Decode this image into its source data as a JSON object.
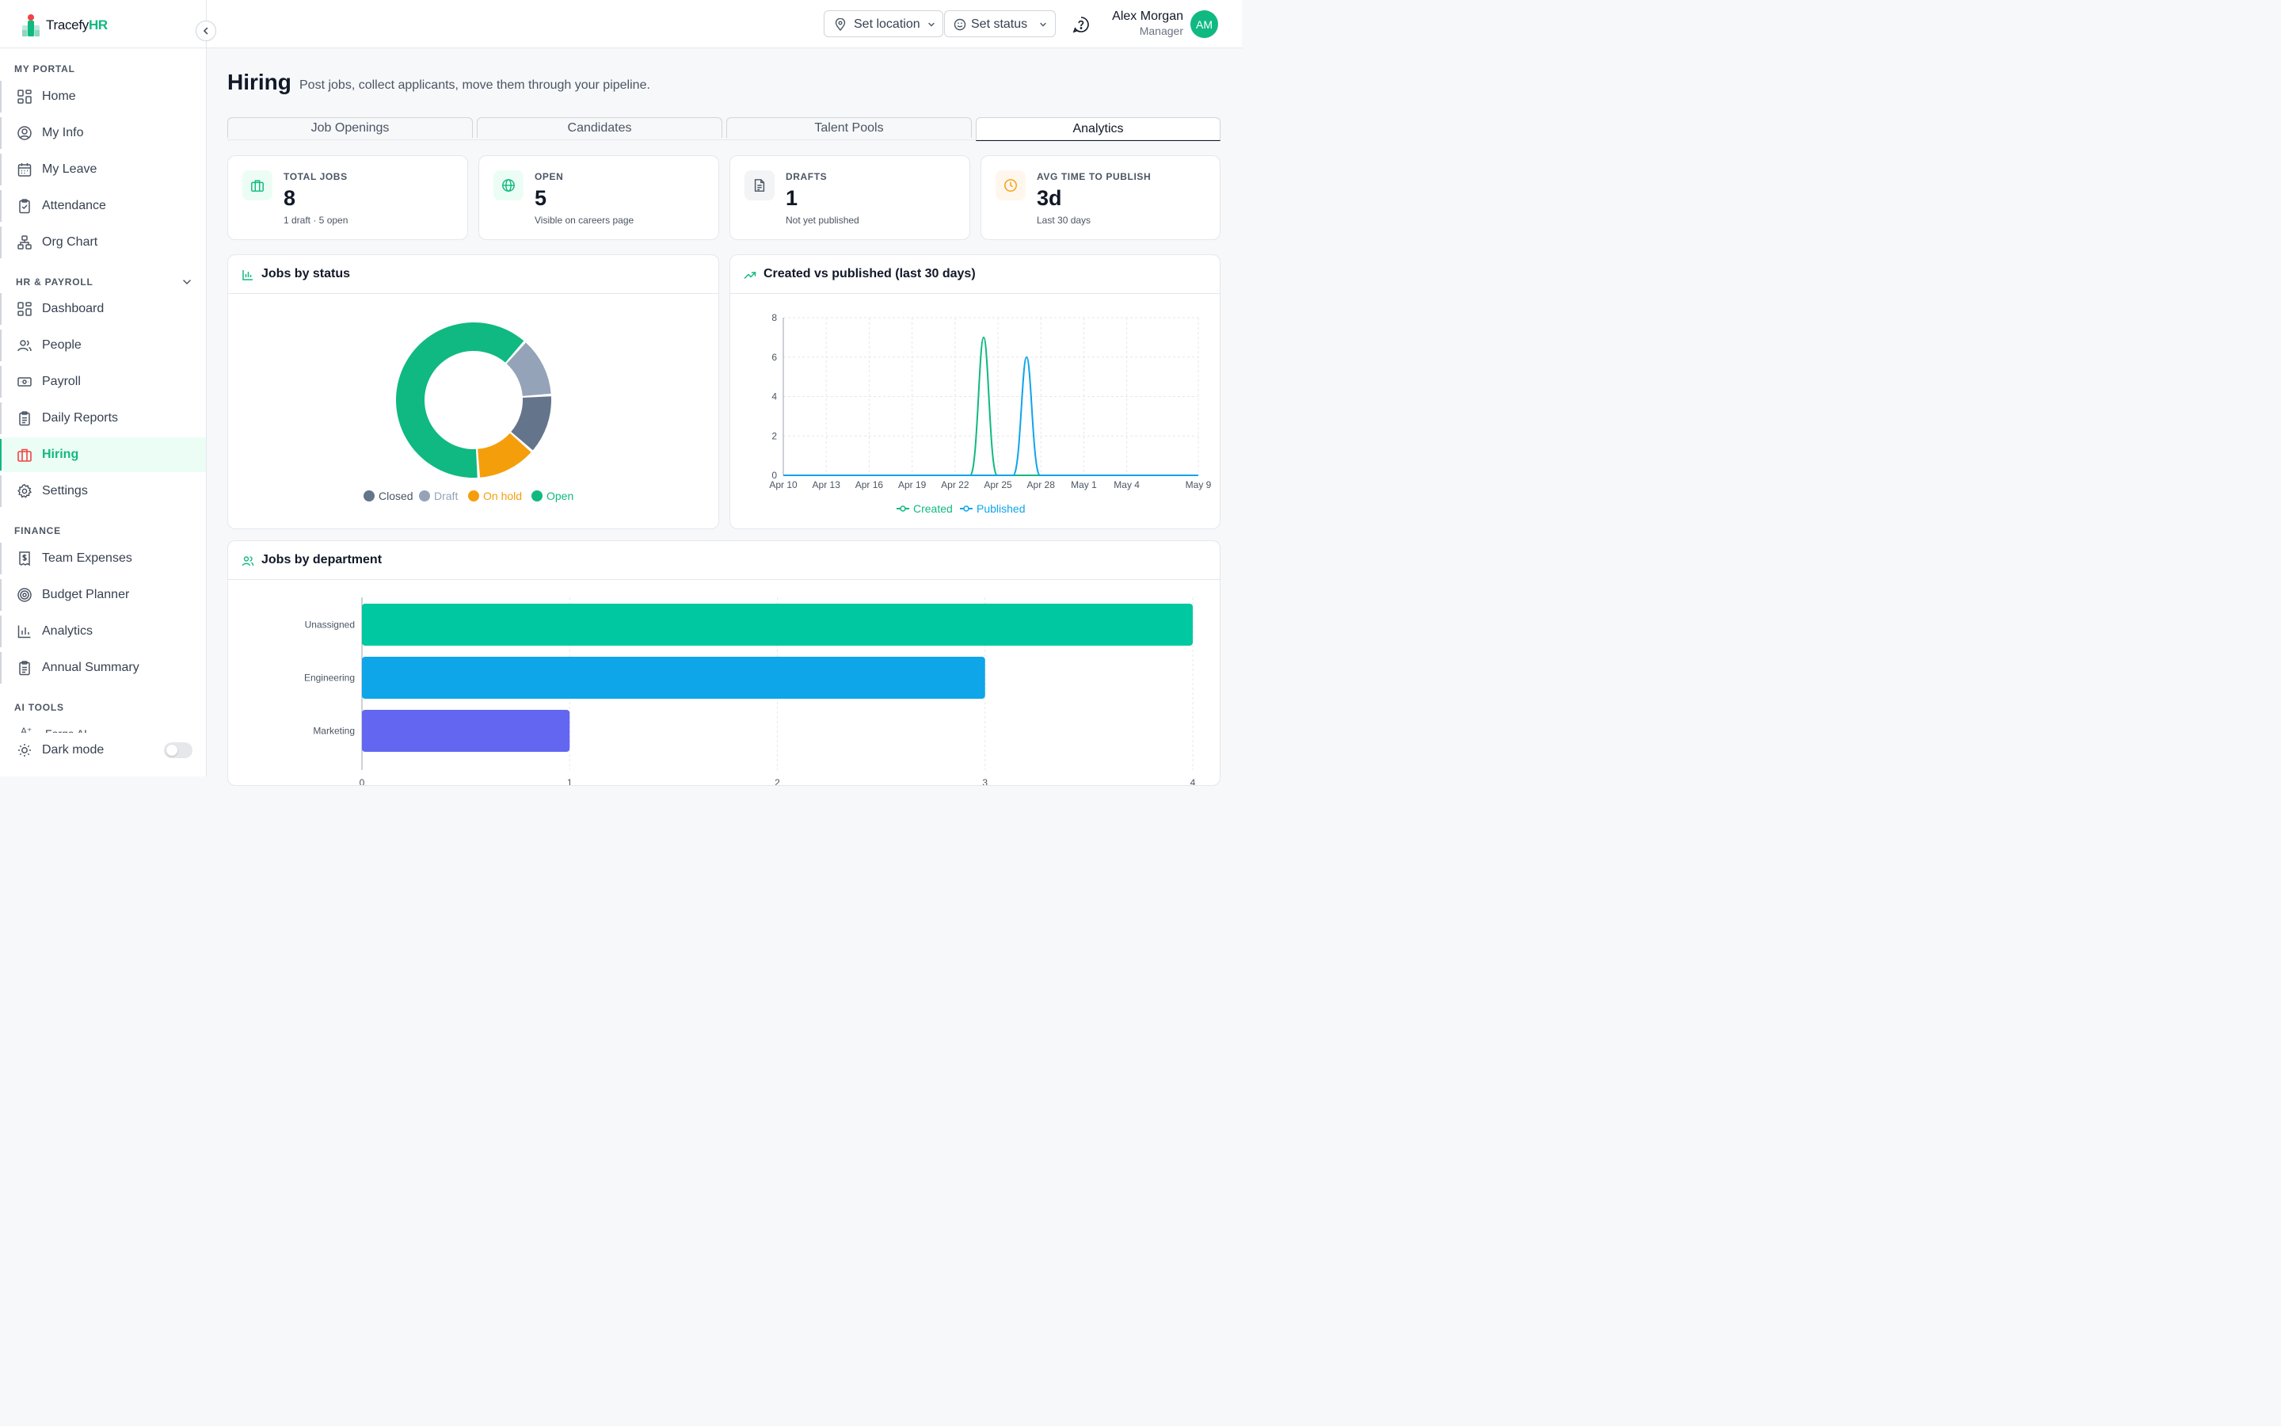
{
  "brand": {
    "name_prefix": "Tracefy",
    "name_suffix": "HR"
  },
  "sidebar": {
    "sections": [
      {
        "title": "MY PORTAL"
      },
      {
        "title": "HR & PAYROLL"
      },
      {
        "title": "FINANCE"
      },
      {
        "title": "AI TOOLS"
      }
    ],
    "items": [
      {
        "label": "Home",
        "icon": "grid-icon"
      },
      {
        "label": "My Info",
        "icon": "user-circle-icon"
      },
      {
        "label": "My Leave",
        "icon": "calendar-icon"
      },
      {
        "label": "Attendance",
        "icon": "clipboard-check-icon"
      },
      {
        "label": "Org Chart",
        "icon": "org-chart-icon"
      },
      {
        "label": "Dashboard",
        "icon": "grid-icon"
      },
      {
        "label": "People",
        "icon": "users-icon"
      },
      {
        "label": "Payroll",
        "icon": "banknote-icon"
      },
      {
        "label": "Daily Reports",
        "icon": "clipboard-icon"
      },
      {
        "label": "Hiring",
        "icon": "briefcase-icon"
      },
      {
        "label": "Settings",
        "icon": "gear-icon"
      },
      {
        "label": "Team Expenses",
        "icon": "receipt-icon"
      },
      {
        "label": "Budget Planner",
        "icon": "target-icon"
      },
      {
        "label": "Analytics",
        "icon": "bar-chart-icon"
      },
      {
        "label": "Annual Summary",
        "icon": "clipboard-icon"
      }
    ],
    "partial_item": "Forge AI",
    "dark_mode_label": "Dark mode"
  },
  "topbar": {
    "location_label": "Set location",
    "status_label": "Set status",
    "user_name": "Alex Morgan",
    "user_role": "Manager",
    "avatar_initials": "AM"
  },
  "page": {
    "title": "Hiring",
    "subtitle": "Post jobs, collect applicants, move them through your pipeline.",
    "tabs": [
      {
        "label": "Job Openings"
      },
      {
        "label": "Candidates"
      },
      {
        "label": "Talent Pools"
      },
      {
        "label": "Analytics"
      }
    ],
    "active_tab": "Analytics"
  },
  "stats": [
    {
      "label": "TOTAL JOBS",
      "value": "8",
      "sub": "1 draft · 5 open",
      "icon": "briefcase-icon",
      "color": "#10b981",
      "bg": "#ecfdf5"
    },
    {
      "label": "OPEN",
      "value": "5",
      "sub": "Visible on careers page",
      "icon": "globe-icon",
      "color": "#10b981",
      "bg": "#ecfdf5"
    },
    {
      "label": "DRAFTS",
      "value": "1",
      "sub": "Not yet published",
      "icon": "document-icon",
      "color": "#4b5563",
      "bg": "#f3f4f6"
    },
    {
      "label": "AVG TIME TO PUBLISH",
      "value": "3d",
      "sub": "Last 30 days",
      "icon": "clock-icon",
      "color": "#f59e0b",
      "bg": "#fff7ed"
    }
  ],
  "cards": {
    "status_title": "Jobs by status",
    "trend_title": "Created vs published (last 30 days)",
    "dept_title": "Jobs by department"
  },
  "chart_data": [
    {
      "type": "pie",
      "title": "Jobs by status",
      "categories": [
        "Closed",
        "Draft",
        "On hold",
        "Open"
      ],
      "values": [
        1,
        1,
        1,
        5
      ],
      "colors": [
        "#64748b",
        "#94a3b8",
        "#f59e0b",
        "#10b981"
      ],
      "donut": true,
      "legend": "bottom"
    },
    {
      "type": "line",
      "title": "Created vs published (last 30 days)",
      "x_ticks": [
        "Apr 10",
        "Apr 13",
        "Apr 16",
        "Apr 19",
        "Apr 22",
        "Apr 25",
        "Apr 28",
        "May 1",
        "May 4",
        "May 9"
      ],
      "y_ticks": [
        "0",
        "2",
        "4",
        "6",
        "8"
      ],
      "ylim": [
        0,
        8
      ],
      "x_start": "2024-04-10",
      "x_end": "2024-05-09",
      "series": [
        {
          "name": "Created",
          "color": "#10b981",
          "peak_date": "2024-04-24",
          "peak_value": 7
        },
        {
          "name": "Published",
          "color": "#0ea5e9",
          "peak_date": "2024-04-27",
          "peak_value": 6
        }
      ],
      "grid": true,
      "legend": "bottom"
    },
    {
      "type": "bar",
      "orientation": "horizontal",
      "title": "Jobs by department",
      "categories": [
        "Unassigned",
        "Engineering",
        "Marketing"
      ],
      "values": [
        4,
        3,
        1
      ],
      "colors": [
        "#00c8a0",
        "#0ea5e9",
        "#6366f1"
      ],
      "x_ticks": [
        "0",
        "1",
        "2",
        "3",
        "4"
      ],
      "xlim": [
        0,
        4
      ],
      "grid": true
    }
  ]
}
